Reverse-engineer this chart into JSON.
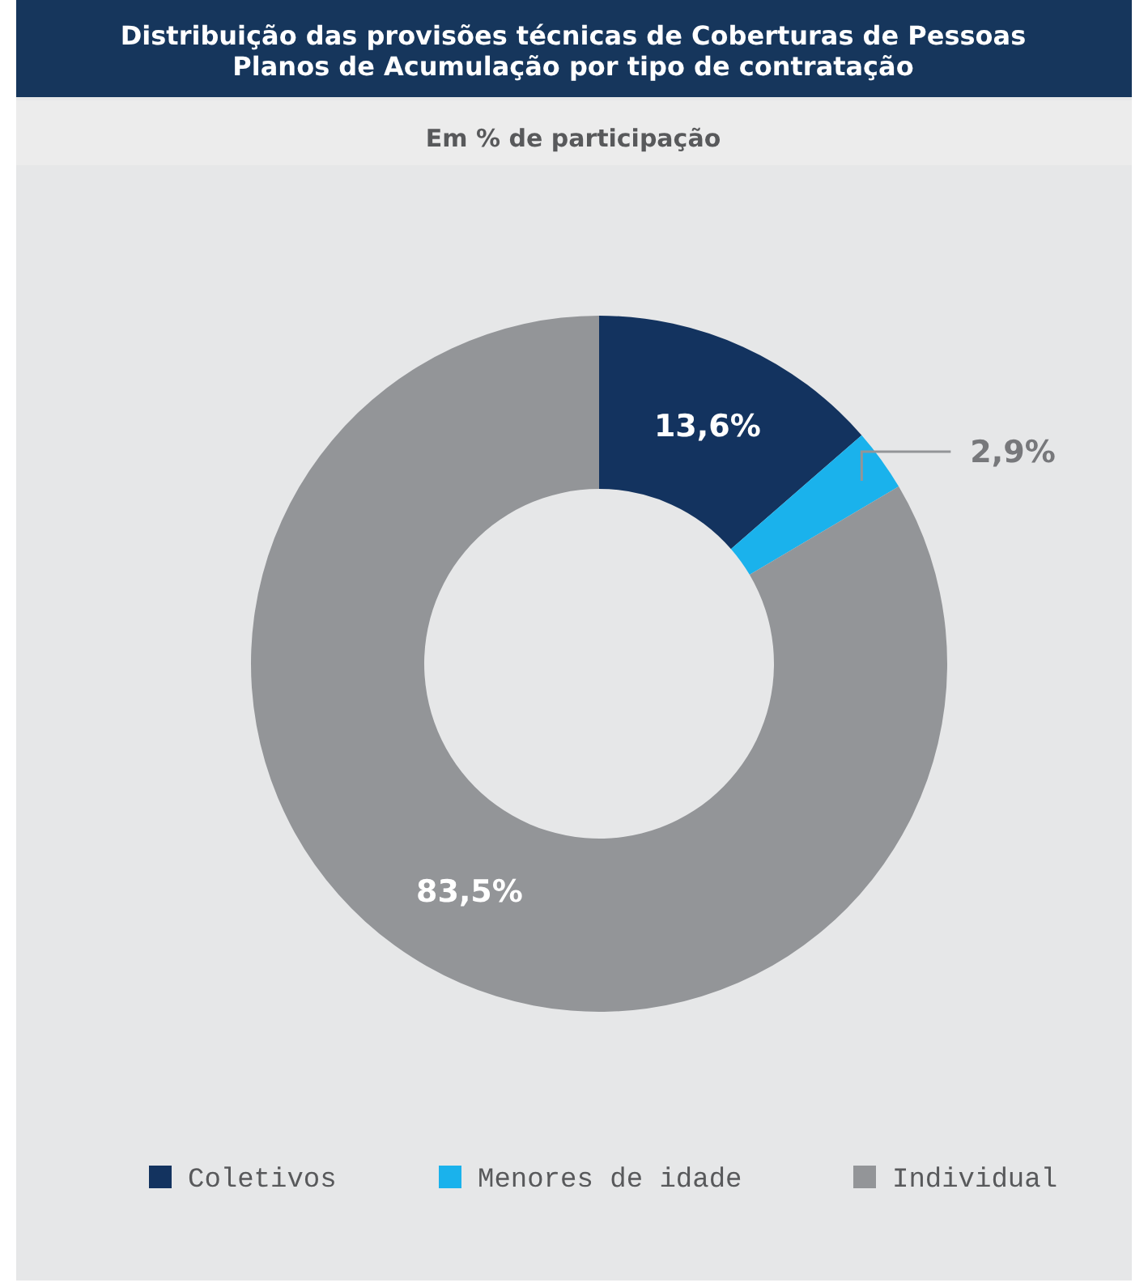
{
  "chart_data": {
    "type": "donut",
    "title": "Distribuição das provisões técnicas de Coberturas de Pessoas Planos de Acumulação por tipo de contratação",
    "subtitle": "Em % de participação",
    "categories": [
      "Coletivos",
      "Menores de idade",
      "Individual"
    ],
    "values": [
      13.6,
      2.9,
      83.5
    ],
    "colors": [
      "#13335f",
      "#1ab2ec",
      "#939598"
    ],
    "value_labels": [
      "13,6%",
      "2,9%",
      "83,5%"
    ],
    "legend": "bottom"
  }
}
